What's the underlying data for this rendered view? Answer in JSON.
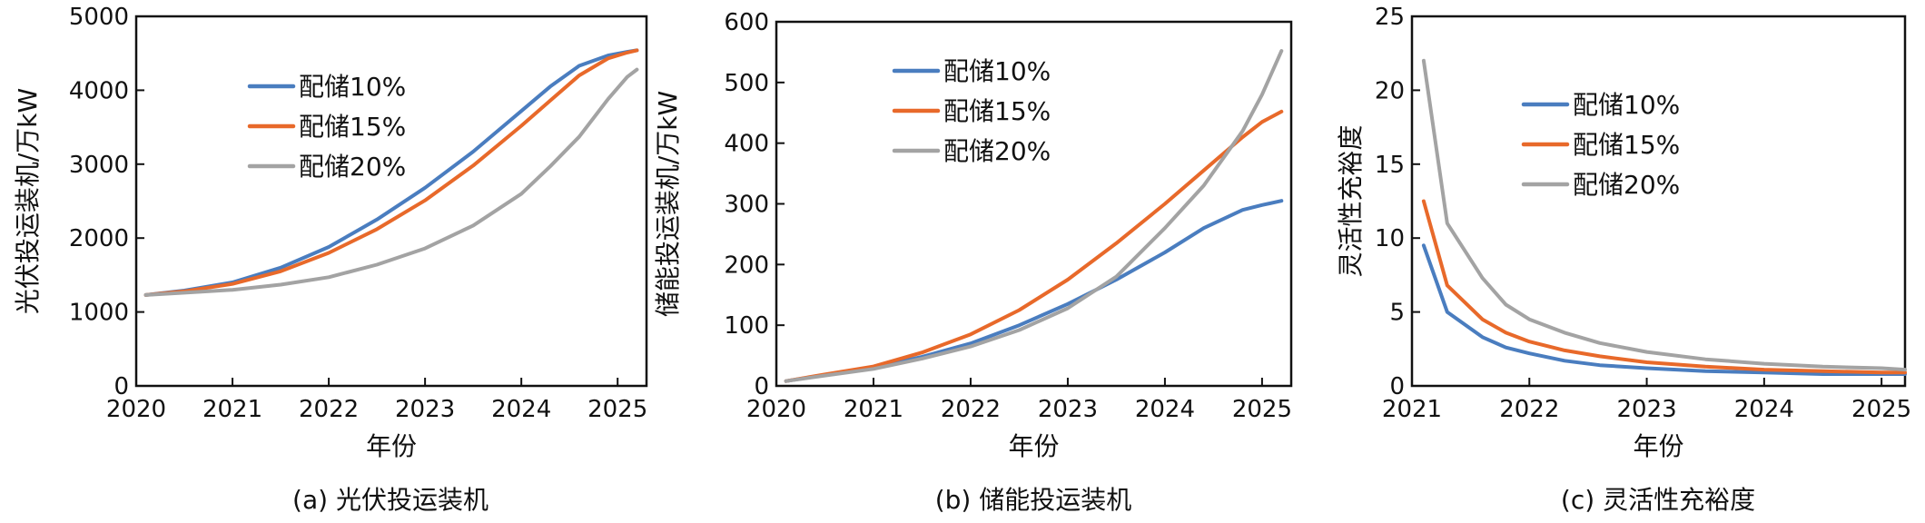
{
  "chart_data": [
    {
      "type": "line",
      "title": "",
      "caption": "(a) 光伏投运装机",
      "xlabel": "年份",
      "ylabel": "光伏投运装机/万kW",
      "xlim": [
        2020,
        2025.3
      ],
      "ylim": [
        0,
        5000
      ],
      "xticks": [
        2020,
        2021,
        2022,
        2023,
        2024,
        2025
      ],
      "yticks": [
        0,
        1000,
        2000,
        3000,
        4000,
        5000
      ],
      "legend_position": "upper-middle",
      "series": [
        {
          "name": "配储10%",
          "x": [
            2020.1,
            2020.5,
            2021.0,
            2021.5,
            2022.0,
            2022.5,
            2023.0,
            2023.5,
            2024.0,
            2024.3,
            2024.6,
            2024.9,
            2025.1,
            2025.2
          ],
          "values": [
            1230,
            1290,
            1400,
            1600,
            1880,
            2250,
            2680,
            3170,
            3720,
            4050,
            4330,
            4470,
            4520,
            4540
          ]
        },
        {
          "name": "配储15%",
          "x": [
            2020.1,
            2020.5,
            2021.0,
            2021.5,
            2022.0,
            2022.5,
            2023.0,
            2023.5,
            2024.0,
            2024.3,
            2024.6,
            2024.9,
            2025.1,
            2025.2
          ],
          "values": [
            1230,
            1280,
            1380,
            1550,
            1800,
            2120,
            2510,
            2980,
            3520,
            3860,
            4200,
            4430,
            4510,
            4540
          ]
        },
        {
          "name": "配储20%",
          "x": [
            2020.1,
            2020.5,
            2021.0,
            2021.5,
            2022.0,
            2022.5,
            2023.0,
            2023.5,
            2024.0,
            2024.3,
            2024.6,
            2024.9,
            2025.1,
            2025.2
          ],
          "values": [
            1230,
            1260,
            1300,
            1370,
            1470,
            1640,
            1860,
            2170,
            2600,
            2970,
            3370,
            3880,
            4180,
            4280
          ]
        }
      ]
    },
    {
      "type": "line",
      "title": "",
      "caption": "(b) 储能投运装机",
      "xlabel": "年份",
      "ylabel": "储能投运装机/万kW",
      "xlim": [
        2020,
        2025.3
      ],
      "ylim": [
        0,
        600
      ],
      "xticks": [
        2020,
        2021,
        2022,
        2023,
        2024,
        2025
      ],
      "yticks": [
        0,
        100,
        200,
        300,
        400,
        500,
        600
      ],
      "legend_position": "upper-middle",
      "series": [
        {
          "name": "配储10%",
          "x": [
            2020.1,
            2020.5,
            2021.0,
            2021.5,
            2022.0,
            2022.5,
            2023.0,
            2023.5,
            2024.0,
            2024.4,
            2024.8,
            2025.0,
            2025.2
          ],
          "values": [
            8,
            18,
            30,
            48,
            70,
            100,
            135,
            175,
            220,
            260,
            290,
            298,
            305
          ]
        },
        {
          "name": "配储15%",
          "x": [
            2020.1,
            2020.5,
            2021.0,
            2021.5,
            2022.0,
            2022.5,
            2023.0,
            2023.5,
            2024.0,
            2024.4,
            2024.8,
            2025.0,
            2025.2
          ],
          "values": [
            8,
            19,
            32,
            55,
            85,
            125,
            175,
            235,
            300,
            355,
            410,
            435,
            452
          ]
        },
        {
          "name": "配储20%",
          "x": [
            2020.1,
            2020.5,
            2021.0,
            2021.5,
            2022.0,
            2022.5,
            2023.0,
            2023.5,
            2024.0,
            2024.4,
            2024.8,
            2025.0,
            2025.2
          ],
          "values": [
            8,
            17,
            28,
            45,
            65,
            92,
            128,
            180,
            260,
            330,
            420,
            480,
            552
          ]
        }
      ]
    },
    {
      "type": "line",
      "title": "",
      "caption": "(c) 灵活性充裕度",
      "xlabel": "年份",
      "ylabel": "灵活性充裕度",
      "xlim": [
        2021,
        2025.2
      ],
      "ylim": [
        0,
        25
      ],
      "xticks": [
        2021,
        2022,
        2023,
        2024,
        2025
      ],
      "yticks": [
        0,
        5,
        10,
        15,
        20,
        25
      ],
      "legend_position": "upper-middle",
      "series": [
        {
          "name": "配储10%",
          "x": [
            2021.1,
            2021.3,
            2021.6,
            2021.8,
            2022.0,
            2022.3,
            2022.6,
            2023.0,
            2023.5,
            2024.0,
            2024.5,
            2025.0,
            2025.2
          ],
          "values": [
            9.5,
            5.0,
            3.3,
            2.6,
            2.2,
            1.7,
            1.4,
            1.2,
            1.0,
            0.9,
            0.8,
            0.8,
            0.8
          ]
        },
        {
          "name": "配储15%",
          "x": [
            2021.1,
            2021.3,
            2021.6,
            2021.8,
            2022.0,
            2022.3,
            2022.6,
            2023.0,
            2023.5,
            2024.0,
            2024.5,
            2025.0,
            2025.2
          ],
          "values": [
            12.5,
            6.8,
            4.5,
            3.6,
            3.0,
            2.4,
            2.0,
            1.6,
            1.3,
            1.1,
            1.0,
            0.9,
            0.9
          ]
        },
        {
          "name": "配储20%",
          "x": [
            2021.1,
            2021.3,
            2021.6,
            2021.8,
            2022.0,
            2022.3,
            2022.6,
            2023.0,
            2023.5,
            2024.0,
            2024.5,
            2025.0,
            2025.2
          ],
          "values": [
            22.0,
            11.0,
            7.3,
            5.5,
            4.5,
            3.6,
            2.9,
            2.3,
            1.8,
            1.5,
            1.3,
            1.2,
            1.1
          ]
        }
      ]
    }
  ],
  "colors": {
    "配储10%": "#4a7dbf",
    "配储15%": "#e8692a",
    "配储20%": "#a3a3a3",
    "axis": "#111111"
  }
}
